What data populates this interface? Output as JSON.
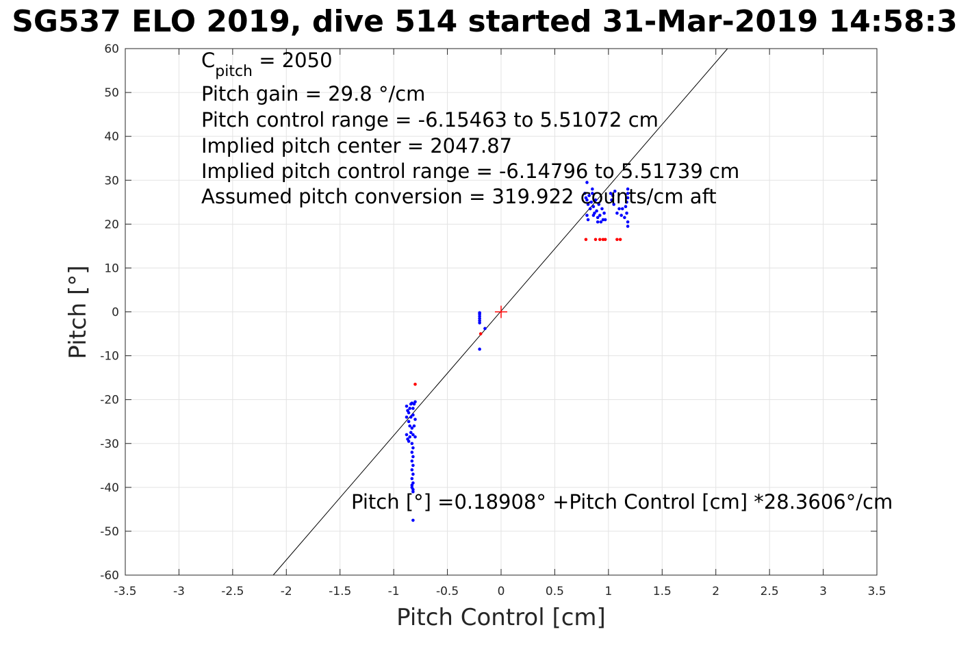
{
  "chart_data": {
    "type": "scatter",
    "title": "SG537 ELO 2019, dive 514 started 31-Mar-2019 14:58:3",
    "xlabel": "Pitch Control [cm]",
    "ylabel": "Pitch [°]",
    "xlim": [
      -3.5,
      3.5
    ],
    "ylim": [
      -60,
      60
    ],
    "xticks": [
      -3.5,
      -3,
      -2.5,
      -2,
      -1.5,
      -1,
      -0.5,
      0,
      0.5,
      1,
      1.5,
      2,
      2.5,
      3,
      3.5
    ],
    "xtick_labels": [
      "-3.5",
      "-3",
      "-2.5",
      "-2",
      "-1.5",
      "-1",
      "-0.5",
      "0",
      "0.5",
      "1",
      "1.5",
      "2",
      "2.5",
      "3",
      "3.5"
    ],
    "yticks": [
      -60,
      -50,
      -40,
      -30,
      -20,
      -10,
      0,
      10,
      20,
      30,
      40,
      50,
      60
    ],
    "ytick_labels": [
      "-60",
      "-50",
      "-40",
      "-30",
      "-20",
      "-10",
      "0",
      "10",
      "20",
      "30",
      "40",
      "50",
      "60"
    ],
    "grid": true,
    "annotations": {
      "cpitch_symbol": "C",
      "cpitch_subscript": "pitch",
      "cpitch_value": " = 2050",
      "pitch_gain": "Pitch gain = 29.8 °/cm",
      "control_range": "Pitch control range = -6.15463 to 5.51072 cm",
      "implied_center": "Implied pitch center = 2047.87",
      "implied_range": "Implied pitch control range = -6.14796 to 5.51739 cm",
      "conversion": "Assumed pitch conversion = 319.922 counts/cm aft",
      "fit_equation": "Pitch [°] =0.18908° +Pitch Control [cm] *28.3606°/cm"
    },
    "fit_line": {
      "intercept": 0.18908,
      "slope": 28.3606,
      "color": "#000000"
    },
    "center_marker": {
      "x": 0,
      "y": 0,
      "color": "#ff0000"
    },
    "series": [
      {
        "color": "#0000ff",
        "points": [
          [
            -0.88,
            -21.5
          ],
          [
            -0.87,
            -22.5
          ],
          [
            -0.86,
            -23
          ],
          [
            -0.85,
            -22
          ],
          [
            -0.84,
            -21
          ],
          [
            -0.83,
            -20.8
          ],
          [
            -0.82,
            -22
          ],
          [
            -0.81,
            -21
          ],
          [
            -0.8,
            -20.5
          ],
          [
            -0.88,
            -24
          ],
          [
            -0.86,
            -25
          ],
          [
            -0.84,
            -24
          ],
          [
            -0.82,
            -23.5
          ],
          [
            -0.8,
            -24.5
          ],
          [
            -0.81,
            -26
          ],
          [
            -0.83,
            -26.5
          ],
          [
            -0.85,
            -26
          ],
          [
            -0.88,
            -28
          ],
          [
            -0.87,
            -29
          ],
          [
            -0.86,
            -29.5
          ],
          [
            -0.85,
            -28.5
          ],
          [
            -0.84,
            -27.5
          ],
          [
            -0.82,
            -28
          ],
          [
            -0.8,
            -28.5
          ],
          [
            -0.83,
            -30
          ],
          [
            -0.82,
            -31
          ],
          [
            -0.83,
            -32
          ],
          [
            -0.82,
            -33
          ],
          [
            -0.83,
            -34
          ],
          [
            -0.82,
            -35
          ],
          [
            -0.83,
            -36
          ],
          [
            -0.82,
            -37
          ],
          [
            -0.83,
            -38
          ],
          [
            -0.82,
            -39
          ],
          [
            -0.83,
            -40
          ],
          [
            -0.82,
            -41
          ],
          [
            -0.83,
            -39.5
          ],
          [
            -0.82,
            -40.5
          ],
          [
            -0.82,
            -47.5
          ],
          [
            -0.2,
            -0.5
          ],
          [
            -0.2,
            -1
          ],
          [
            -0.2,
            -1.5
          ],
          [
            -0.2,
            -2
          ],
          [
            -0.2,
            -2.5
          ],
          [
            -0.2,
            -0.2
          ],
          [
            -0.15,
            -3.8
          ],
          [
            -0.2,
            -8.5
          ],
          [
            0.78,
            27
          ],
          [
            0.79,
            26
          ],
          [
            0.8,
            29.5
          ],
          [
            0.8,
            25.5
          ],
          [
            0.81,
            24.5
          ],
          [
            0.82,
            26.5
          ],
          [
            0.83,
            23.5
          ],
          [
            0.84,
            25
          ],
          [
            0.85,
            27
          ],
          [
            0.86,
            24
          ],
          [
            0.87,
            22.5
          ],
          [
            0.88,
            25.5
          ],
          [
            0.89,
            23
          ],
          [
            0.9,
            21.5
          ],
          [
            0.91,
            24.5
          ],
          [
            0.92,
            22
          ],
          [
            0.93,
            20.5
          ],
          [
            0.94,
            23.5
          ],
          [
            0.95,
            21
          ],
          [
            0.8,
            22
          ],
          [
            0.81,
            21
          ],
          [
            0.85,
            28
          ],
          [
            0.86,
            22
          ],
          [
            0.9,
            20.5
          ],
          [
            0.96,
            22.5
          ],
          [
            0.97,
            21
          ],
          [
            1.02,
            27
          ],
          [
            1.03,
            25.5
          ],
          [
            1.04,
            26.5
          ],
          [
            1.05,
            24.5
          ],
          [
            1.06,
            27.5
          ],
          [
            1.08,
            22.5
          ],
          [
            1.1,
            23.5
          ],
          [
            1.12,
            22
          ],
          [
            1.13,
            23.5
          ],
          [
            1.15,
            21.5
          ],
          [
            1.16,
            24
          ],
          [
            1.17,
            22.5
          ],
          [
            1.18,
            28
          ],
          [
            1.18,
            27
          ],
          [
            1.18,
            26
          ],
          [
            1.17,
            25
          ],
          [
            1.18,
            20.5
          ],
          [
            1.18,
            19.5
          ]
        ]
      },
      {
        "color": "#ff0000",
        "points": [
          [
            -0.8,
            -16.5
          ],
          [
            -0.19,
            -5
          ],
          [
            0.79,
            16.5
          ],
          [
            0.88,
            16.5
          ],
          [
            0.92,
            16.5
          ],
          [
            0.95,
            16.5
          ],
          [
            0.97,
            16.5
          ],
          [
            1.08,
            16.5
          ],
          [
            1.11,
            16.5
          ]
        ]
      }
    ]
  }
}
